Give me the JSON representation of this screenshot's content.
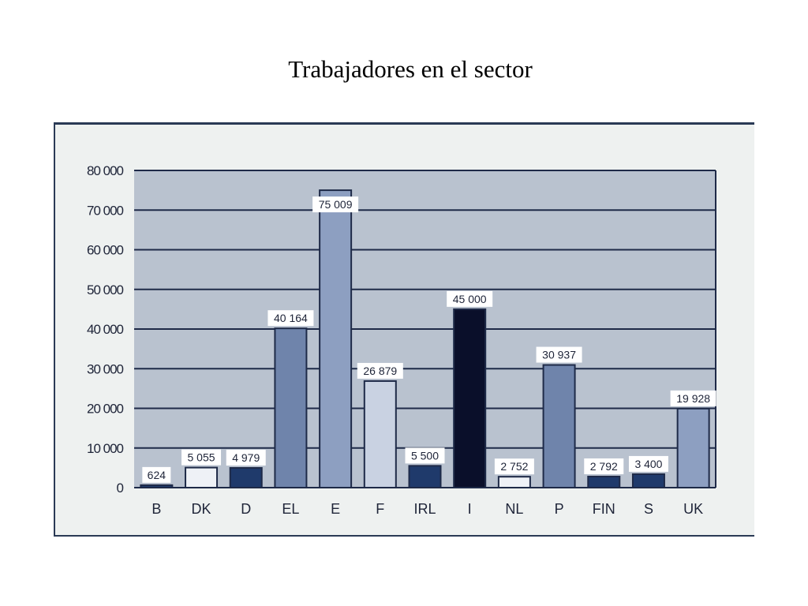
{
  "slide": {
    "title": "Trabajadores en el sector"
  },
  "chart_data": {
    "type": "bar",
    "title": "Trabajadores en el sector",
    "xlabel": "",
    "ylabel": "",
    "ylim": [
      0,
      80000
    ],
    "yticks": [
      0,
      10000,
      20000,
      30000,
      40000,
      50000,
      60000,
      70000,
      80000
    ],
    "ytick_labels": [
      "0",
      "10 000",
      "20 000",
      "30 000",
      "40 000",
      "50 000",
      "60 000",
      "70 000",
      "80 000"
    ],
    "grid": true,
    "categories": [
      "B",
      "DK",
      "D",
      "EL",
      "E",
      "F",
      "IRL",
      "I",
      "NL",
      "P",
      "FIN",
      "S",
      "UK"
    ],
    "values": [
      624,
      5055,
      4979,
      40164,
      75009,
      26879,
      5500,
      45000,
      2752,
      30937,
      2792,
      3400,
      19928
    ],
    "data_labels": [
      "624",
      "5 055",
      "4 979",
      "40 164",
      "75 009",
      "26 879",
      "5 500",
      "45 000",
      "2 752",
      "30 937",
      "2 792",
      "3 400",
      "19 928"
    ],
    "bar_colors": [
      "#1f3a6b",
      "#eef1f6",
      "#1f3a6b",
      "#6f84ab",
      "#8d9fc1",
      "#c9d2e2",
      "#1f3a6b",
      "#0a0f2a",
      "#eef1f6",
      "#6f84ab",
      "#1f3a6b",
      "#1f3a6b",
      "#8d9fc1"
    ],
    "colors": {
      "plot_bg": "#b9c2cf",
      "gridline": "#1e2a48",
      "frame_bg": "#eef1f0"
    }
  }
}
